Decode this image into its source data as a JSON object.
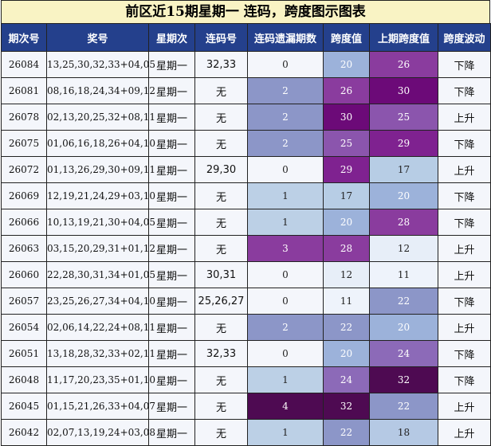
{
  "title": "前区近15期星期一 连码，跨度图示图表",
  "headers": [
    "期次号",
    "奖号",
    "星期次",
    "连码号",
    "连码遗漏期数",
    "跨度值",
    "上期跨度值",
    "跨度波动"
  ],
  "rows": [
    {
      "issue": "26084",
      "numbers": "13,25,30,32,33+04,05",
      "weekday": "星期一",
      "consec": "32,33",
      "omit": "0",
      "span": "20",
      "prev_span": "26",
      "trend": "下降"
    },
    {
      "issue": "26081",
      "numbers": "08,16,18,24,34+09,12",
      "weekday": "星期一",
      "consec": "无",
      "omit": "2",
      "span": "26",
      "prev_span": "30",
      "trend": "下降"
    },
    {
      "issue": "26078",
      "numbers": "02,13,20,25,32+08,11",
      "weekday": "星期一",
      "consec": "无",
      "omit": "2",
      "span": "30",
      "prev_span": "25",
      "trend": "上升"
    },
    {
      "issue": "26075",
      "numbers": "01,06,16,18,26+04,10",
      "weekday": "星期一",
      "consec": "无",
      "omit": "2",
      "span": "25",
      "prev_span": "29",
      "trend": "下降"
    },
    {
      "issue": "26072",
      "numbers": "01,13,26,29,30+09,11",
      "weekday": "星期一",
      "consec": "29,30",
      "omit": "0",
      "span": "29",
      "prev_span": "17",
      "trend": "上升"
    },
    {
      "issue": "26069",
      "numbers": "12,19,21,24,29+03,10",
      "weekday": "星期一",
      "consec": "无",
      "omit": "1",
      "span": "17",
      "prev_span": "20",
      "trend": "下降"
    },
    {
      "issue": "26066",
      "numbers": "10,13,19,21,30+04,05",
      "weekday": "星期一",
      "consec": "无",
      "omit": "1",
      "span": "20",
      "prev_span": "28",
      "trend": "下降"
    },
    {
      "issue": "26063",
      "numbers": "03,15,20,29,31+01,12",
      "weekday": "星期一",
      "consec": "无",
      "omit": "3",
      "span": "28",
      "prev_span": "12",
      "trend": "上升"
    },
    {
      "issue": "26060",
      "numbers": "22,28,30,31,34+01,05",
      "weekday": "星期一",
      "consec": "30,31",
      "omit": "0",
      "span": "12",
      "prev_span": "11",
      "trend": "上升"
    },
    {
      "issue": "26057",
      "numbers": "23,25,26,27,34+04,10",
      "weekday": "星期一",
      "consec": "25,26,27",
      "omit": "0",
      "span": "11",
      "prev_span": "22",
      "trend": "下降"
    },
    {
      "issue": "26054",
      "numbers": "02,06,14,22,24+08,11",
      "weekday": "星期一",
      "consec": "无",
      "omit": "2",
      "span": "22",
      "prev_span": "20",
      "trend": "上升"
    },
    {
      "issue": "26051",
      "numbers": "13,18,28,32,33+02,11",
      "weekday": "星期一",
      "consec": "32,33",
      "omit": "0",
      "span": "20",
      "prev_span": "24",
      "trend": "下降"
    },
    {
      "issue": "26048",
      "numbers": "11,17,20,23,35+01,10",
      "weekday": "星期一",
      "consec": "无",
      "omit": "1",
      "span": "24",
      "prev_span": "32",
      "trend": "下降"
    },
    {
      "issue": "26045",
      "numbers": "01,15,21,26,33+04,07",
      "weekday": "星期一",
      "consec": "无",
      "omit": "4",
      "span": "32",
      "prev_span": "22",
      "trend": "上升"
    },
    {
      "issue": "26042",
      "numbers": "02,07,13,19,24+03,08",
      "weekday": "星期一",
      "consec": "无",
      "omit": "1",
      "span": "22",
      "prev_span": "18",
      "trend": "上升"
    }
  ],
  "colors": {
    "header_bg": "#24408c",
    "title_bg": "#f9f3c4",
    "omit_scale": {
      "0": "#f4f6fb",
      "1": "#bcd0e6",
      "2": "#8c96c8",
      "3": "#8a3c9e",
      "4": "#4e0a52"
    },
    "span_scale": {
      "11": "#eef3fb",
      "12": "#e7eef8",
      "17": "#b7cde5",
      "18": "#b5c9e4",
      "20": "#9cb2da",
      "22": "#8c96c8",
      "24": "#8c6ab8",
      "25": "#8b55ad",
      "26": "#8a3c9e",
      "28": "#8a3c9e",
      "29": "#7f2290",
      "30": "#6c0a78",
      "32": "#4e0a52"
    }
  }
}
